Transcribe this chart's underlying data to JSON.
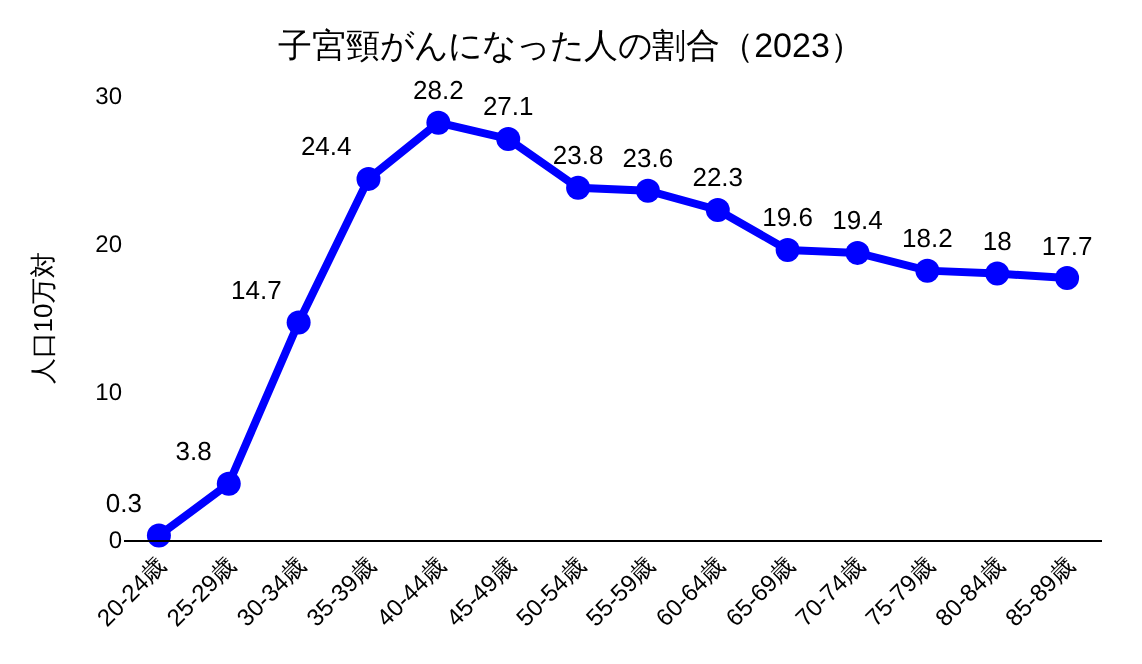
{
  "chart_data": {
    "type": "line",
    "title": "子宮頸がんになった人の割合（2023）",
    "ylabel": "人口10万対",
    "categories": [
      "20-24歳",
      "25-29歳",
      "30-34歳",
      "35-39歳",
      "40-44歳",
      "45-49歳",
      "50-54歳",
      "55-59歳",
      "60-64歳",
      "65-69歳",
      "70-74歳",
      "75-79歳",
      "80-84歳",
      "85-89歳"
    ],
    "series": [
      {
        "color": "#0000ff",
        "values": [
          0.3,
          3.8,
          14.7,
          24.4,
          28.2,
          27.1,
          23.8,
          23.6,
          22.3,
          19.6,
          19.4,
          18.2,
          18,
          17.7
        ]
      }
    ],
    "ylim": [
      0,
      30
    ],
    "yticks": [
      0,
      10,
      20,
      30
    ],
    "grid": false,
    "marker": "circle",
    "line_style": "solid",
    "data_labels": true
  }
}
